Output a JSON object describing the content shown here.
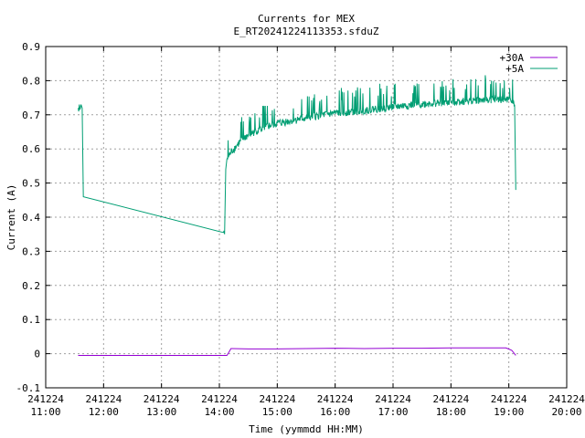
{
  "chart_data": {
    "type": "line",
    "title": "Currents for MEX",
    "subtitle": "E_RT20241224113353.sfduZ",
    "xlabel": "Time (yymmdd HH:MM)",
    "ylabel": "Current (A)",
    "xlim": [
      11.0,
      20.0
    ],
    "ylim": [
      -0.1,
      0.9
    ],
    "yticks": [
      -0.1,
      0,
      0.1,
      0.2,
      0.3,
      0.4,
      0.5,
      0.6,
      0.7,
      0.8,
      0.9
    ],
    "ytick_labels": [
      "-0.1",
      "0",
      "0.1",
      "0.2",
      "0.3",
      "0.4",
      "0.5",
      "0.6",
      "0.7",
      "0.8",
      "0.9"
    ],
    "xticks": [
      {
        "value": 11,
        "date": "241224",
        "time": "11:00"
      },
      {
        "value": 12,
        "date": "241224",
        "time": "12:00"
      },
      {
        "value": 13,
        "date": "241224",
        "time": "13:00"
      },
      {
        "value": 14,
        "date": "241224",
        "time": "14:00"
      },
      {
        "value": 15,
        "date": "241224",
        "time": "15:00"
      },
      {
        "value": 16,
        "date": "241224",
        "time": "16:00"
      },
      {
        "value": 17,
        "date": "241224",
        "time": "17:00"
      },
      {
        "value": 18,
        "date": "241224",
        "time": "18:00"
      },
      {
        "value": 19,
        "date": "241224",
        "time": "19:00"
      },
      {
        "value": 20,
        "date": "241224",
        "time": "20:00"
      }
    ],
    "grid": true,
    "legend_position": "top-right",
    "series": [
      {
        "name": "+30A",
        "color": "#9400d3",
        "points": [
          [
            11.56,
            -0.005
          ],
          [
            14.13,
            -0.005
          ],
          [
            14.16,
            0.003
          ],
          [
            14.2,
            0.015
          ],
          [
            14.5,
            0.014
          ],
          [
            15.0,
            0.014
          ],
          [
            15.5,
            0.015
          ],
          [
            16.0,
            0.016
          ],
          [
            16.5,
            0.015
          ],
          [
            17.0,
            0.016
          ],
          [
            17.5,
            0.016
          ],
          [
            18.0,
            0.017
          ],
          [
            18.5,
            0.017
          ],
          [
            18.95,
            0.017
          ],
          [
            19.05,
            0.01
          ],
          [
            19.12,
            -0.005
          ]
        ]
      },
      {
        "name": "+5A",
        "color": "#009e73",
        "points": [
          [
            11.56,
            0.72
          ],
          [
            11.57,
            0.71
          ],
          [
            11.58,
            0.73
          ],
          [
            11.59,
            0.715
          ],
          [
            11.6,
            0.72
          ],
          [
            11.61,
            0.73
          ],
          [
            11.63,
            0.72
          ],
          [
            11.65,
            0.46
          ],
          [
            14.07,
            0.355
          ],
          [
            14.08,
            0.36
          ],
          [
            14.09,
            0.35
          ],
          [
            14.11,
            0.54
          ],
          [
            14.13,
            0.57
          ],
          [
            14.2,
            0.59
          ],
          [
            14.3,
            0.61
          ],
          [
            14.4,
            0.63
          ],
          [
            14.6,
            0.65
          ],
          [
            14.8,
            0.665
          ],
          [
            15.0,
            0.675
          ],
          [
            15.3,
            0.685
          ],
          [
            15.6,
            0.695
          ],
          [
            16.0,
            0.705
          ],
          [
            16.4,
            0.712
          ],
          [
            16.8,
            0.72
          ],
          [
            17.2,
            0.727
          ],
          [
            17.6,
            0.733
          ],
          [
            18.0,
            0.738
          ],
          [
            18.4,
            0.743
          ],
          [
            18.8,
            0.746
          ],
          [
            19.0,
            0.745
          ],
          [
            19.05,
            0.74
          ],
          [
            19.1,
            0.73
          ],
          [
            19.12,
            0.48
          ]
        ],
        "noise_band": {
          "x_start": 14.13,
          "x_end": 19.1,
          "amplitude": 0.03
        }
      }
    ]
  }
}
